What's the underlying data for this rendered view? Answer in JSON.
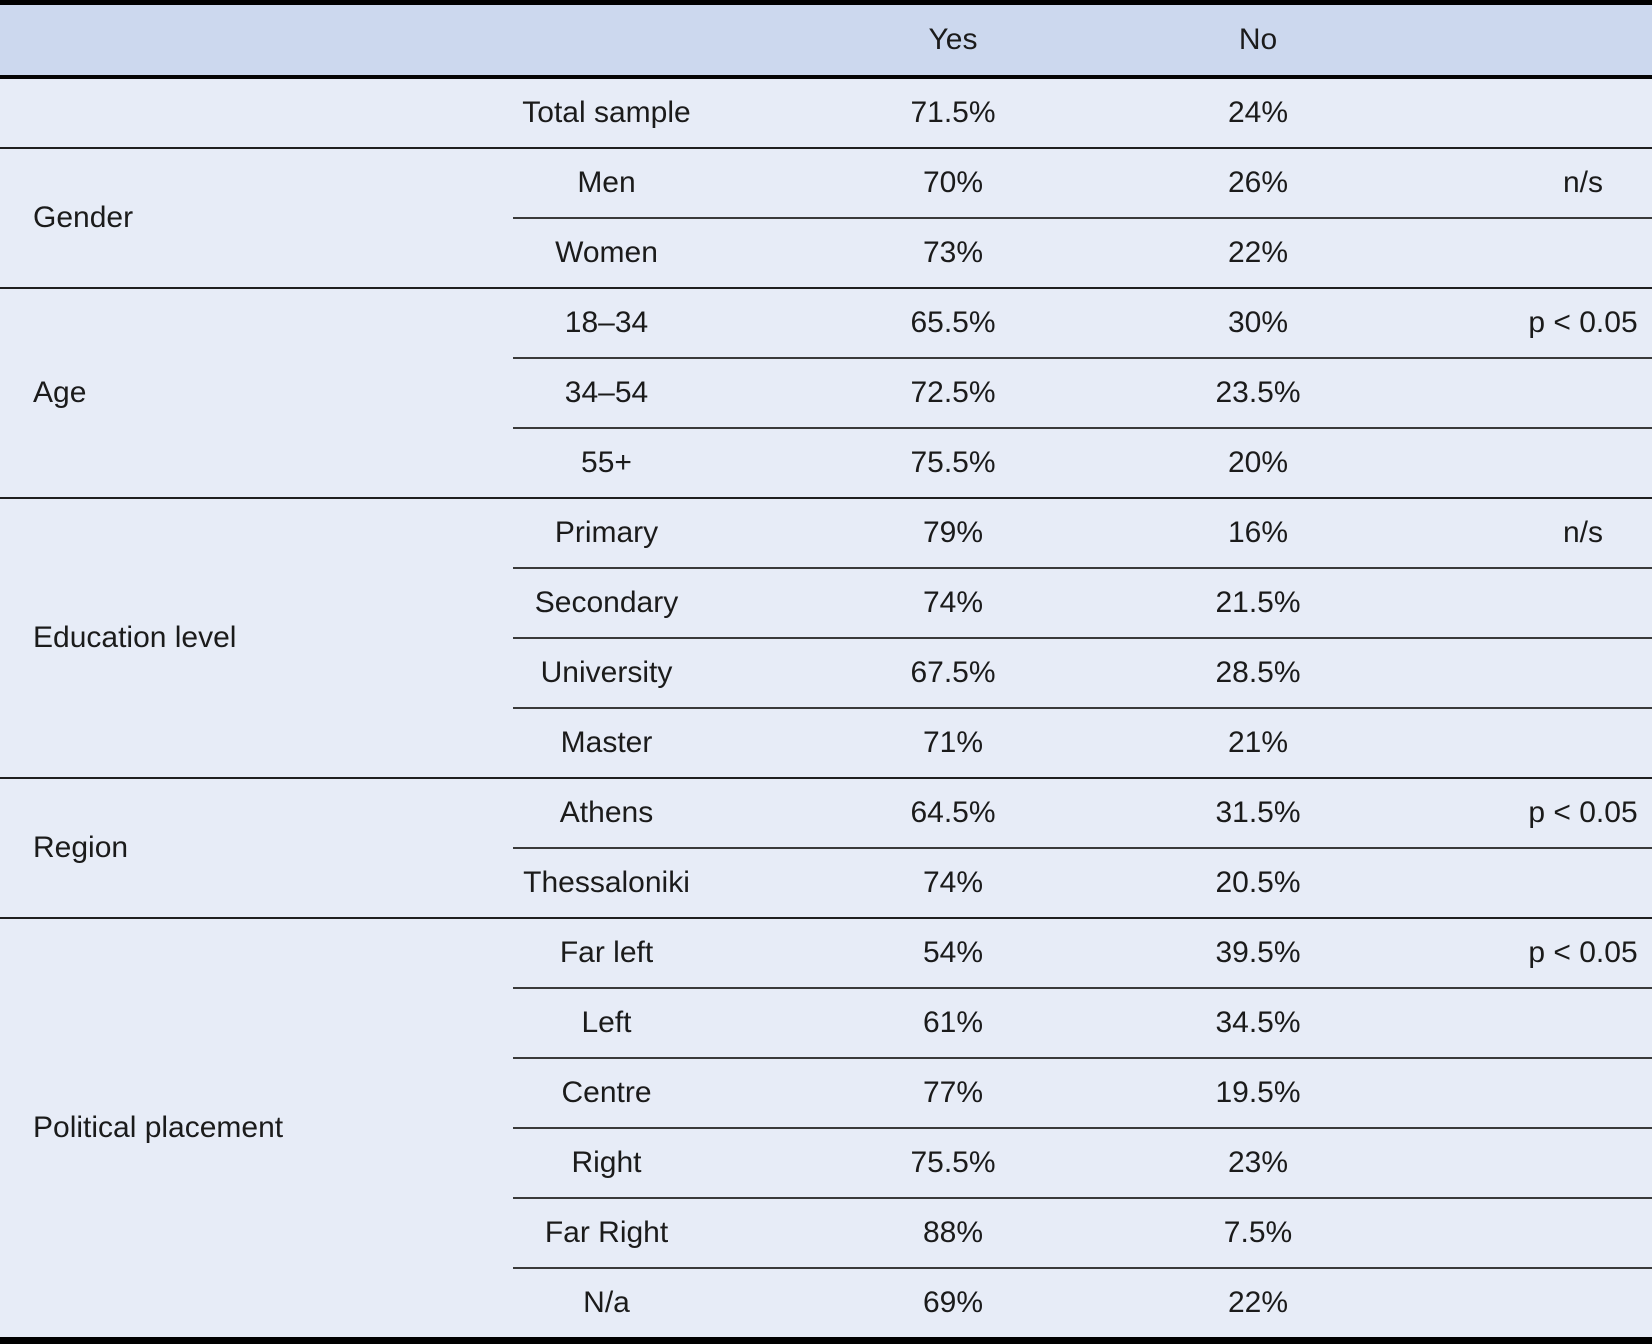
{
  "table": {
    "title": "survey-results-yes-no-by-demographic",
    "header": {
      "group": "",
      "category": "",
      "yes": "Yes",
      "no": "No",
      "significance": ""
    },
    "groups": [
      {
        "label": "",
        "rows": [
          {
            "category": "Total sample",
            "yes": "71.5%",
            "no": "24%",
            "significance": ""
          }
        ]
      },
      {
        "label": "Gender",
        "rows": [
          {
            "category": "Men",
            "yes": "70%",
            "no": "26%",
            "significance": "n/s"
          },
          {
            "category": "Women",
            "yes": "73%",
            "no": "22%",
            "significance": ""
          }
        ]
      },
      {
        "label": "Age",
        "rows": [
          {
            "category": "18–34",
            "yes": "65.5%",
            "no": "30%",
            "significance": "p < 0.05"
          },
          {
            "category": "34–54",
            "yes": "72.5%",
            "no": "23.5%",
            "significance": ""
          },
          {
            "category": "55+",
            "yes": "75.5%",
            "no": "20%",
            "significance": ""
          }
        ]
      },
      {
        "label": "Education level",
        "rows": [
          {
            "category": "Primary",
            "yes": "79%",
            "no": "16%",
            "significance": "n/s"
          },
          {
            "category": "Secondary",
            "yes": "74%",
            "no": "21.5%",
            "significance": ""
          },
          {
            "category": "University",
            "yes": "67.5%",
            "no": "28.5%",
            "significance": ""
          },
          {
            "category": "Master",
            "yes": "71%",
            "no": "21%",
            "significance": ""
          }
        ]
      },
      {
        "label": "Region",
        "rows": [
          {
            "category": "Athens",
            "yes": "64.5%",
            "no": "31.5%",
            "significance": "p < 0.05"
          },
          {
            "category": "Thessaloniki",
            "yes": "74%",
            "no": "20.5%",
            "significance": ""
          }
        ]
      },
      {
        "label": "Political placement",
        "rows": [
          {
            "category": "Far left",
            "yes": "54%",
            "no": "39.5%",
            "significance": "p < 0.05"
          },
          {
            "category": "Left",
            "yes": "61%",
            "no": "34.5%",
            "significance": ""
          },
          {
            "category": "Centre",
            "yes": "77%",
            "no": "19.5%",
            "significance": ""
          },
          {
            "category": "Right",
            "yes": "75.5%",
            "no": "23%",
            "significance": ""
          },
          {
            "category": "Far Right",
            "yes": "88%",
            "no": "7.5%",
            "significance": ""
          },
          {
            "category": "N/a",
            "yes": "69%",
            "no": "22%",
            "significance": ""
          }
        ]
      }
    ],
    "colors": {
      "header_bg": "#ccd8ee",
      "row_bg": "#e7ecf7",
      "border_strong": "#000000",
      "border_group": "#1f1f1f",
      "border_sub": "#3a3a3a",
      "text": "#1b1b1b"
    }
  }
}
